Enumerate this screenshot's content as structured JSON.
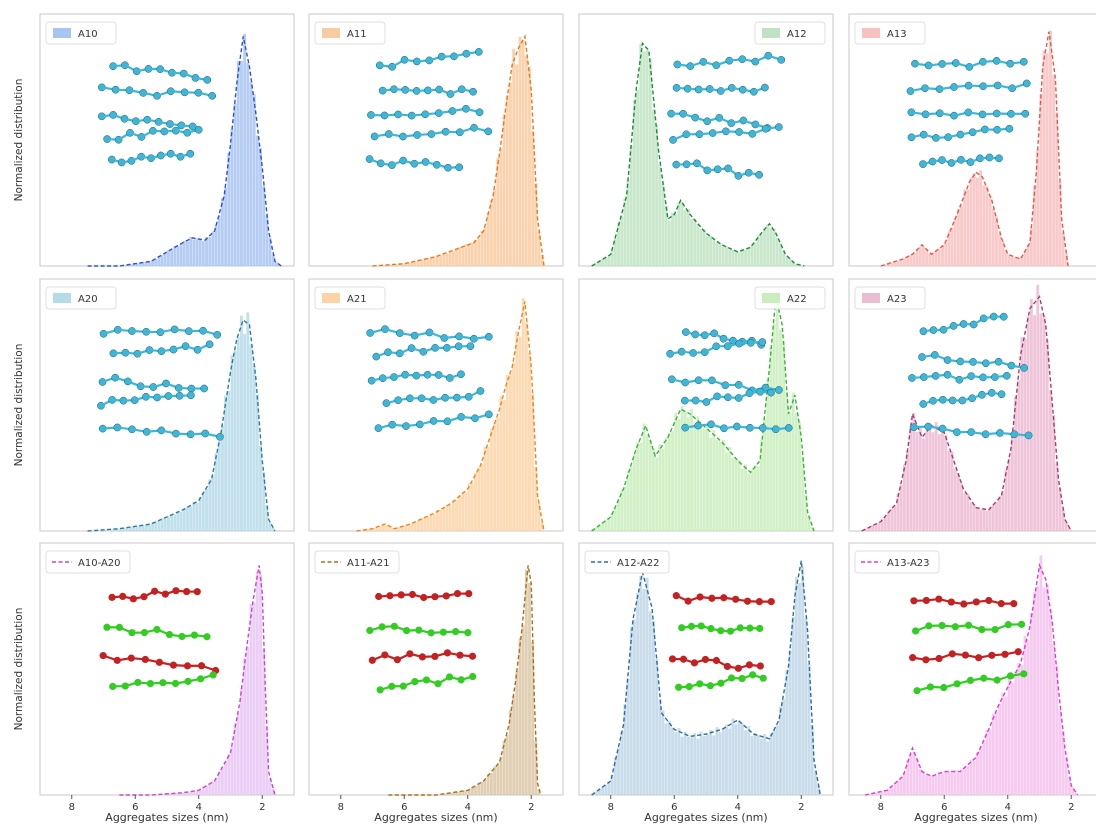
{
  "figure": {
    "y_label": "Normalized distribution",
    "x_label": "Aggregates sizes (nm)",
    "x_ticks": [
      8,
      6,
      4,
      2
    ]
  },
  "chart_data": [
    {
      "type": "area",
      "legend": "A10",
      "color": "#a8c4f0",
      "line": "#2f4fd0",
      "row": 0,
      "col": 0,
      "xlim": [
        9,
        1
      ],
      "ylim": [
        0,
        1.05
      ],
      "x": [
        7.5,
        6.5,
        5.5,
        5.0,
        4.5,
        4.2,
        3.8,
        3.5,
        3.2,
        3.0,
        2.8,
        2.6,
        2.4,
        2.2,
        2.0,
        1.8,
        1.6,
        1.4
      ],
      "values": [
        0.0,
        0.0,
        0.02,
        0.06,
        0.1,
        0.12,
        0.11,
        0.15,
        0.3,
        0.52,
        0.78,
        0.98,
        0.85,
        0.65,
        0.42,
        0.15,
        0.02,
        0.0
      ],
      "molecule": "cyan"
    },
    {
      "type": "area",
      "legend": "A11",
      "color": "#f9cba0",
      "line": "#e07b20",
      "row": 0,
      "col": 1,
      "xlim": [
        9,
        1
      ],
      "ylim": [
        0,
        1.05
      ],
      "x": [
        7.0,
        6.0,
        5.0,
        4.6,
        4.2,
        3.8,
        3.5,
        3.2,
        3.0,
        2.8,
        2.6,
        2.4,
        2.2,
        2.0,
        1.8,
        1.6
      ],
      "values": [
        0.0,
        0.01,
        0.04,
        0.06,
        0.08,
        0.1,
        0.15,
        0.3,
        0.48,
        0.68,
        0.86,
        0.93,
        0.98,
        0.75,
        0.2,
        0.0
      ],
      "molecule": "cyan"
    },
    {
      "type": "area",
      "legend": "A12",
      "color": "#bfe3c2",
      "line": "#1e8a3a",
      "row": 0,
      "col": 2,
      "xlim": [
        9,
        1
      ],
      "ylim": [
        0,
        1.05
      ],
      "x": [
        8.6,
        8.0,
        7.5,
        7.2,
        7.0,
        6.8,
        6.5,
        6.2,
        6.0,
        5.8,
        5.5,
        5.0,
        4.5,
        4.0,
        3.6,
        3.2,
        3.0,
        2.8,
        2.5,
        2.2,
        1.9
      ],
      "values": [
        0.0,
        0.05,
        0.3,
        0.75,
        0.95,
        0.92,
        0.5,
        0.2,
        0.22,
        0.28,
        0.22,
        0.14,
        0.09,
        0.06,
        0.08,
        0.15,
        0.18,
        0.14,
        0.05,
        0.01,
        0.0
      ],
      "molecule": "cyan"
    },
    {
      "type": "area",
      "legend": "A13",
      "color": "#f7c1c0",
      "line": "#e05a4e",
      "row": 0,
      "col": 3,
      "xlim": [
        9,
        1
      ],
      "ylim": [
        0,
        1.05
      ],
      "x": [
        8.0,
        7.3,
        7.0,
        6.7,
        6.4,
        6.0,
        5.6,
        5.2,
        5.0,
        4.8,
        4.5,
        4.2,
        4.0,
        3.6,
        3.3,
        3.1,
        2.9,
        2.7,
        2.5,
        2.3,
        2.1
      ],
      "values": [
        0.0,
        0.03,
        0.05,
        0.09,
        0.05,
        0.09,
        0.22,
        0.36,
        0.4,
        0.38,
        0.28,
        0.12,
        0.05,
        0.03,
        0.1,
        0.4,
        0.85,
        1.0,
        0.8,
        0.2,
        0.0
      ],
      "molecule": "cyan"
    },
    {
      "type": "area",
      "legend": "A20",
      "color": "#b6dbe8",
      "line": "#2a7d9a",
      "row": 1,
      "col": 0,
      "xlim": [
        9,
        1
      ],
      "ylim": [
        0,
        1.05
      ],
      "x": [
        7.5,
        6.5,
        5.5,
        5.0,
        4.5,
        4.0,
        3.6,
        3.3,
        3.0,
        2.8,
        2.6,
        2.4,
        2.2,
        2.0,
        1.8,
        1.6
      ],
      "values": [
        0.0,
        0.01,
        0.03,
        0.06,
        0.09,
        0.13,
        0.22,
        0.42,
        0.68,
        0.82,
        0.9,
        0.88,
        0.65,
        0.3,
        0.05,
        0.0
      ],
      "molecule": "cyan"
    },
    {
      "type": "area",
      "legend": "A21",
      "color": "#fbd3a6",
      "line": "#e8891d",
      "row": 1,
      "col": 1,
      "xlim": [
        9,
        1
      ],
      "ylim": [
        0,
        1.05
      ],
      "x": [
        7.5,
        7.0,
        6.6,
        6.3,
        5.8,
        5.0,
        4.5,
        4.0,
        3.6,
        3.3,
        3.0,
        2.8,
        2.6,
        2.4,
        2.2,
        2.0,
        1.8,
        1.6
      ],
      "values": [
        0.0,
        0.01,
        0.03,
        0.01,
        0.03,
        0.08,
        0.12,
        0.18,
        0.28,
        0.4,
        0.52,
        0.62,
        0.7,
        0.85,
        0.98,
        0.7,
        0.15,
        0.0
      ],
      "molecule": "cyan"
    },
    {
      "type": "area",
      "legend": "A22",
      "color": "#c9edbc",
      "line": "#3bb33b",
      "row": 1,
      "col": 2,
      "xlim": [
        9,
        1
      ],
      "ylim": [
        0,
        1.05
      ],
      "x": [
        8.6,
        8.0,
        7.6,
        7.2,
        6.9,
        6.6,
        6.2,
        5.8,
        5.5,
        5.0,
        4.5,
        4.0,
        3.6,
        3.3,
        3.0,
        2.8,
        2.6,
        2.4,
        2.2,
        2.0,
        1.8,
        1.6
      ],
      "values": [
        0.0,
        0.06,
        0.18,
        0.35,
        0.45,
        0.32,
        0.4,
        0.52,
        0.5,
        0.44,
        0.38,
        0.3,
        0.25,
        0.3,
        0.7,
        1.0,
        0.88,
        0.5,
        0.58,
        0.4,
        0.08,
        0.0
      ],
      "molecule": "cyan"
    },
    {
      "type": "area",
      "legend": "A23",
      "color": "#ecbcd2",
      "line": "#a43d6e",
      "row": 1,
      "col": 3,
      "xlim": [
        9,
        1
      ],
      "ylim": [
        0,
        1.05
      ],
      "x": [
        8.6,
        8.0,
        7.5,
        7.2,
        7.0,
        6.7,
        6.4,
        6.0,
        5.7,
        5.4,
        5.0,
        4.6,
        4.2,
        3.9,
        3.6,
        3.3,
        3.0,
        2.8,
        2.6,
        2.4,
        2.2,
        2.0
      ],
      "values": [
        0.0,
        0.04,
        0.12,
        0.3,
        0.5,
        0.4,
        0.45,
        0.42,
        0.3,
        0.18,
        0.1,
        0.09,
        0.15,
        0.35,
        0.75,
        0.95,
        1.0,
        0.88,
        0.55,
        0.22,
        0.05,
        0.0
      ],
      "molecule": "cyan"
    },
    {
      "type": "area",
      "legend": "A10-A20",
      "color": "#e7c6f5",
      "line": "#cc44cc",
      "row": 2,
      "col": 0,
      "xlim": [
        9,
        1
      ],
      "ylim": [
        0,
        1.05
      ],
      "x": [
        6.5,
        5.5,
        4.5,
        4.0,
        3.5,
        3.0,
        2.7,
        2.5,
        2.3,
        2.1,
        2.0,
        1.9,
        1.8,
        1.6
      ],
      "values": [
        0.0,
        0.0,
        0.01,
        0.02,
        0.06,
        0.18,
        0.4,
        0.62,
        0.82,
        0.98,
        0.86,
        0.45,
        0.1,
        0.0
      ],
      "molecule": "redgreen"
    },
    {
      "type": "area",
      "legend": "A11-A21",
      "color": "#dcc7a6",
      "line": "#a8701e",
      "row": 2,
      "col": 1,
      "xlim": [
        9,
        1
      ],
      "ylim": [
        0,
        1.05
      ],
      "x": [
        6.5,
        5.0,
        4.0,
        3.5,
        3.0,
        2.7,
        2.5,
        2.3,
        2.1,
        2.0,
        1.9,
        1.8,
        1.7
      ],
      "values": [
        0.0,
        0.0,
        0.02,
        0.06,
        0.14,
        0.3,
        0.48,
        0.7,
        0.98,
        0.9,
        0.4,
        0.05,
        0.0
      ],
      "molecule": "redgreen"
    },
    {
      "type": "area",
      "legend": "A12-A22",
      "color": "#bfd6e6",
      "line": "#2d6c9f",
      "row": 2,
      "col": 2,
      "xlim": [
        9,
        1
      ],
      "ylim": [
        0,
        1.05
      ],
      "x": [
        8.6,
        8.0,
        7.6,
        7.3,
        7.0,
        6.7,
        6.4,
        6.0,
        5.5,
        5.0,
        4.5,
        4.0,
        3.5,
        3.0,
        2.7,
        2.4,
        2.2,
        2.0,
        1.8,
        1.6,
        1.4
      ],
      "values": [
        0.0,
        0.06,
        0.3,
        0.75,
        0.95,
        0.8,
        0.35,
        0.28,
        0.25,
        0.26,
        0.28,
        0.32,
        0.26,
        0.24,
        0.32,
        0.55,
        0.85,
        1.0,
        0.7,
        0.15,
        0.0
      ],
      "molecule": "redgreen"
    },
    {
      "type": "area",
      "legend": "A13-A23",
      "color": "#f3c2ec",
      "line": "#e23ad0",
      "row": 2,
      "col": 3,
      "xlim": [
        9,
        1
      ],
      "ylim": [
        0,
        1.05
      ],
      "x": [
        8.5,
        7.8,
        7.3,
        7.0,
        6.7,
        6.4,
        6.0,
        5.5,
        5.0,
        4.6,
        4.3,
        4.0,
        3.6,
        3.3,
        3.0,
        2.8,
        2.6,
        2.4,
        2.2,
        2.0,
        1.8
      ],
      "values": [
        0.0,
        0.02,
        0.08,
        0.2,
        0.1,
        0.08,
        0.1,
        0.1,
        0.16,
        0.28,
        0.38,
        0.46,
        0.56,
        0.72,
        0.98,
        0.92,
        0.74,
        0.45,
        0.2,
        0.04,
        0.0
      ],
      "molecule": "redgreen"
    }
  ]
}
